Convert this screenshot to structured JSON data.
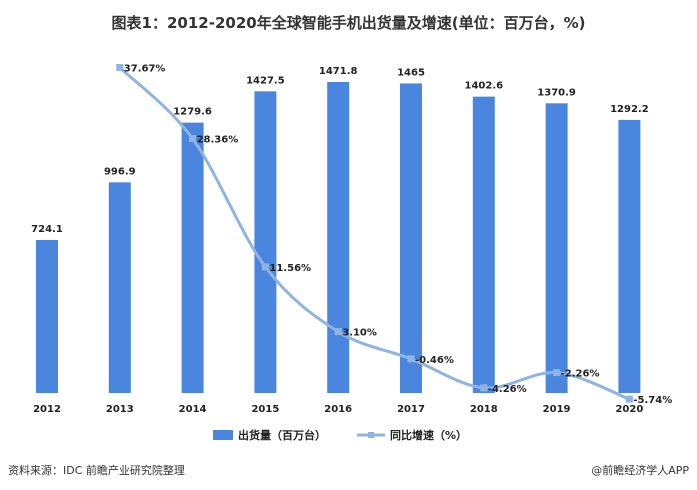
{
  "title": "图表1：2012-2020年全球智能手机出货量及增速(单位：百万台，%)",
  "source": "资料来源：IDC 前瞻产业研究院整理",
  "brand": "@前瞻经济学人APP",
  "colors": {
    "bar": "#4a86dd",
    "line": "#8fb4e3",
    "text": "#222222"
  },
  "chart_data": {
    "type": "bar",
    "categories": [
      "2012",
      "2013",
      "2014",
      "2015",
      "2016",
      "2017",
      "2018",
      "2019",
      "2020"
    ],
    "series": [
      {
        "name": "出货量（百万台）",
        "type": "bar",
        "values": [
          724.1,
          996.9,
          1279.6,
          1427.5,
          1471.8,
          1465,
          1402.6,
          1370.9,
          1292.2
        ],
        "labels": [
          "724.1",
          "996.9",
          "1279.6",
          "1427.5",
          "1471.8",
          "1465",
          "1402.6",
          "1370.9",
          "1292.2"
        ]
      },
      {
        "name": "同比增速（%）",
        "type": "line",
        "values": [
          null,
          37.67,
          28.36,
          11.56,
          3.1,
          -0.46,
          -4.26,
          -2.26,
          -5.74
        ],
        "labels": [
          "",
          "37.67%",
          "28.36%",
          "11.56%",
          "3.10%",
          "-0.46%",
          "-4.26%",
          "-2.26%",
          "-5.74%"
        ]
      }
    ],
    "legend": [
      "出货量（百万台）",
      "同比增速（%）"
    ],
    "legend_position": "bottom",
    "grid": false
  }
}
